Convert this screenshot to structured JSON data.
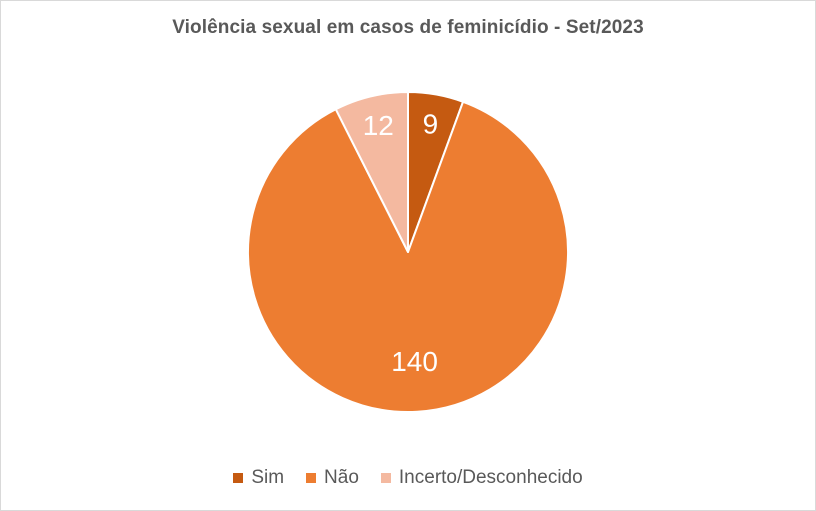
{
  "chart_data": {
    "type": "pie",
    "title": "Violência sexual em casos de feminicídio - Set/2023",
    "categories": [
      "Sim",
      "Não",
      "Incerto/Desconhecido"
    ],
    "values": [
      9,
      140,
      12
    ],
    "data_labels": [
      "9",
      "140",
      "12"
    ],
    "colors": [
      "#c55a11",
      "#ed7d31",
      "#f4b9a0"
    ],
    "label_color": "#ffffff",
    "legend_position": "bottom"
  }
}
